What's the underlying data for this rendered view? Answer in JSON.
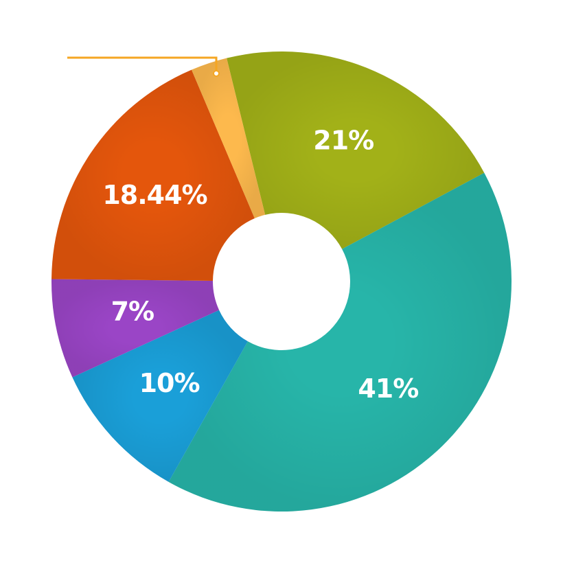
{
  "chart_data": {
    "type": "pie",
    "values": [
      21,
      41,
      10,
      7,
      18.44,
      2.56
    ],
    "value_labels": [
      "21%",
      "41%",
      "10%",
      "7%",
      "18.44%",
      null
    ],
    "colors": [
      "#a2b118",
      "#27b5a9",
      "#1a9fd8",
      "#9a45c6",
      "#e4560c",
      "#fdb94d"
    ],
    "donut": true
  }
}
